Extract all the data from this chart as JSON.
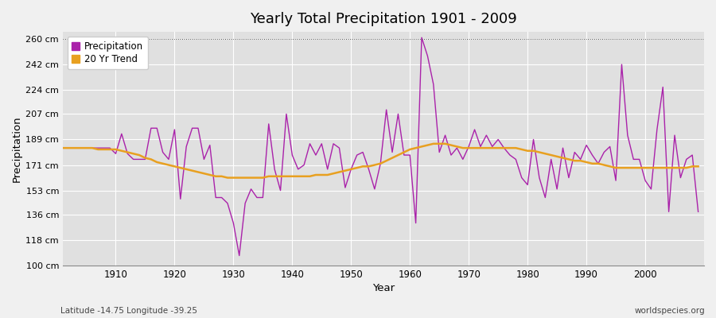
{
  "title": "Yearly Total Precipitation 1901 - 2009",
  "xlabel": "Year",
  "ylabel": "Precipitation",
  "footnote_left": "Latitude -14.75 Longitude -39.25",
  "footnote_right": "worldspecies.org",
  "fig_bg_color": "#f0f0f0",
  "plot_bg_color": "#e0e0e0",
  "precip_color": "#aa22aa",
  "trend_color": "#e8a020",
  "ylim": [
    100,
    265
  ],
  "yticks": [
    100,
    118,
    136,
    153,
    171,
    189,
    207,
    224,
    242,
    260
  ],
  "ytick_labels": [
    "100 cm",
    "118 cm",
    "136 cm",
    "153 cm",
    "171 cm",
    "189 cm",
    "207 cm",
    "224 cm",
    "242 cm",
    "260 cm"
  ],
  "xlim": [
    1901,
    2010
  ],
  "xticks": [
    1910,
    1920,
    1930,
    1940,
    1950,
    1960,
    1970,
    1980,
    1990,
    2000
  ],
  "hline_y": 260,
  "years": [
    1901,
    1902,
    1903,
    1904,
    1905,
    1906,
    1907,
    1908,
    1909,
    1910,
    1911,
    1912,
    1913,
    1914,
    1915,
    1916,
    1917,
    1918,
    1919,
    1920,
    1921,
    1922,
    1923,
    1924,
    1925,
    1926,
    1927,
    1928,
    1929,
    1930,
    1931,
    1932,
    1933,
    1934,
    1935,
    1936,
    1937,
    1938,
    1939,
    1940,
    1941,
    1942,
    1943,
    1944,
    1945,
    1946,
    1947,
    1948,
    1949,
    1950,
    1951,
    1952,
    1953,
    1954,
    1955,
    1956,
    1957,
    1958,
    1959,
    1960,
    1961,
    1962,
    1963,
    1964,
    1965,
    1966,
    1967,
    1968,
    1969,
    1970,
    1971,
    1972,
    1973,
    1974,
    1975,
    1976,
    1977,
    1978,
    1979,
    1980,
    1981,
    1982,
    1983,
    1984,
    1985,
    1986,
    1987,
    1988,
    1989,
    1990,
    1991,
    1992,
    1993,
    1994,
    1995,
    1996,
    1997,
    1998,
    1999,
    2000,
    2001,
    2002,
    2003,
    2004,
    2005,
    2006,
    2007,
    2008,
    2009
  ],
  "precip": [
    183,
    183,
    183,
    183,
    183,
    183,
    183,
    183,
    183,
    179,
    193,
    179,
    175,
    175,
    175,
    197,
    197,
    180,
    175,
    196,
    147,
    184,
    197,
    197,
    175,
    185,
    148,
    148,
    144,
    130,
    107,
    144,
    154,
    148,
    148,
    200,
    168,
    153,
    207,
    178,
    168,
    171,
    186,
    178,
    186,
    168,
    186,
    183,
    155,
    168,
    178,
    180,
    168,
    154,
    172,
    210,
    180,
    207,
    178,
    178,
    130,
    261,
    248,
    228,
    180,
    192,
    178,
    183,
    175,
    184,
    196,
    184,
    192,
    184,
    189,
    183,
    178,
    175,
    162,
    157,
    189,
    162,
    148,
    175,
    154,
    183,
    162,
    180,
    175,
    185,
    178,
    172,
    180,
    184,
    160,
    242,
    192,
    175,
    175,
    160,
    154,
    196,
    226,
    138,
    192,
    162,
    175,
    178,
    138
  ],
  "trend": [
    183,
    183,
    183,
    183,
    183,
    183,
    182,
    182,
    182,
    182,
    181,
    180,
    179,
    178,
    176,
    175,
    173,
    172,
    171,
    170,
    169,
    168,
    167,
    166,
    165,
    164,
    163,
    163,
    162,
    162,
    162,
    162,
    162,
    162,
    162,
    163,
    163,
    163,
    163,
    163,
    163,
    163,
    163,
    164,
    164,
    164,
    165,
    166,
    167,
    168,
    169,
    170,
    170,
    171,
    172,
    174,
    176,
    178,
    180,
    182,
    183,
    184,
    185,
    186,
    186,
    186,
    185,
    184,
    183,
    183,
    183,
    183,
    183,
    183,
    183,
    183,
    183,
    183,
    182,
    181,
    181,
    180,
    179,
    178,
    177,
    176,
    175,
    174,
    174,
    173,
    172,
    172,
    171,
    170,
    169,
    169,
    169,
    169,
    169,
    169,
    169,
    169,
    169,
    169,
    169,
    169,
    169,
    170,
    170
  ]
}
